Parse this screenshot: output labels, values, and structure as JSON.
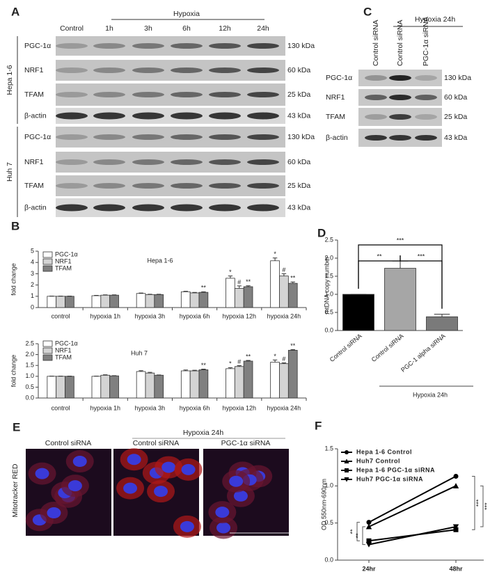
{
  "panel_letters": [
    "A",
    "B",
    "C",
    "D",
    "E",
    "F"
  ],
  "panel_a": {
    "group_label": "Hypoxia",
    "lanes": [
      "Control",
      "1h",
      "3h",
      "6h",
      "12h",
      "24h"
    ],
    "cell_lines": [
      {
        "name": "Hepa 1-6",
        "rows": [
          {
            "protein": "PGC-1α",
            "size": "130 kDa"
          },
          {
            "protein": "NRF1",
            "size": "60 kDa"
          },
          {
            "protein": "TFAM",
            "size": "25 kDa"
          },
          {
            "protein": "β-actin",
            "size": "43 kDa"
          }
        ]
      },
      {
        "name": "Huh 7",
        "rows": [
          {
            "protein": "PGC-1α",
            "size": "130 kDa"
          },
          {
            "protein": "NRF1",
            "size": "60 kDa"
          },
          {
            "protein": "TFAM",
            "size": "25 kDa"
          },
          {
            "protein": "β-actin",
            "size": "43 kDa"
          }
        ]
      }
    ]
  },
  "panel_c": {
    "group_label": "Hypoxia 24h",
    "lanes": [
      "Control siRNA",
      "Control siRNA",
      "PGC-1α siRNA"
    ],
    "rows": [
      {
        "protein": "PGC-1α",
        "size": "130 kDa"
      },
      {
        "protein": "NRF1",
        "size": "60 kDa"
      },
      {
        "protein": "TFAM",
        "size": "25 kDa"
      },
      {
        "protein": "β-actin",
        "size": "43 kDa"
      }
    ]
  },
  "panel_e": {
    "group_label": "Hypoxia 24h",
    "stain": "Mitotracker RED",
    "images": [
      "Control siRNA",
      "Control siRNA",
      "PGC-1α siRNA"
    ]
  },
  "chart_data": [
    {
      "type": "bar",
      "title": "Hepa 1-6",
      "y_label": "fold change",
      "legend": "upper left",
      "categories": [
        "control",
        "hypoxia 1h",
        "hypoxia 3h",
        "hypoxia 6h",
        "hypoxia 12h",
        "hypoxia 24h"
      ],
      "ylim": [
        0,
        5
      ],
      "yticks": [
        0,
        1,
        2,
        3,
        4,
        5
      ],
      "series": [
        {
          "name": "PGC-1α",
          "color": "#ffffff",
          "values": [
            1.0,
            1.05,
            1.25,
            1.4,
            2.6,
            4.15
          ],
          "errors": [
            0.02,
            0.03,
            0.04,
            0.04,
            0.2,
            0.25
          ],
          "significance": [
            null,
            null,
            null,
            null,
            "*",
            "*"
          ]
        },
        {
          "name": "NRF1",
          "color": "#d4d4d4",
          "values": [
            1.0,
            1.1,
            1.15,
            1.3,
            1.7,
            2.8
          ],
          "errors": [
            0.02,
            0.03,
            0.03,
            0.04,
            0.22,
            0.2
          ],
          "significance": [
            null,
            null,
            null,
            null,
            "#",
            "#"
          ]
        },
        {
          "name": "TFAM",
          "color": "#808080",
          "values": [
            1.0,
            1.1,
            1.15,
            1.35,
            1.85,
            2.15
          ],
          "errors": [
            0.02,
            0.03,
            0.03,
            0.05,
            0.08,
            0.12
          ],
          "significance": [
            null,
            null,
            null,
            "**",
            "**",
            "**"
          ]
        }
      ]
    },
    {
      "type": "bar",
      "title": "Huh 7",
      "y_label": "fold change",
      "legend": "upper left",
      "categories": [
        "control",
        "hypoxia 1h",
        "hypoxia 3h",
        "hypoxia 6h",
        "hypoxia 12h",
        "hypoxia 24h"
      ],
      "ylim": [
        0,
        2.5
      ],
      "yticks": [
        {
          "value": 0,
          "label": "0.0"
        },
        0.5,
        {
          "value": 1,
          "label": "1.0"
        },
        1.5,
        {
          "value": 2,
          "label": "2.0"
        },
        2.5
      ],
      "series": [
        {
          "name": "PGC-1α",
          "color": "#ffffff",
          "values": [
            1.0,
            1.0,
            1.22,
            1.25,
            1.35,
            1.65
          ],
          "errors": [
            0.01,
            0.01,
            0.04,
            0.04,
            0.05,
            0.1
          ],
          "significance": [
            null,
            null,
            null,
            null,
            "*",
            "*"
          ]
        },
        {
          "name": "NRF1",
          "color": "#d4d4d4",
          "values": [
            1.0,
            1.05,
            1.15,
            1.25,
            1.45,
            1.58
          ],
          "errors": [
            0.01,
            0.02,
            0.03,
            0.03,
            0.04,
            0.04
          ],
          "significance": [
            null,
            null,
            null,
            null,
            "#",
            "#"
          ]
        },
        {
          "name": "TFAM",
          "color": "#808080",
          "values": [
            1.0,
            1.02,
            1.05,
            1.3,
            1.7,
            2.2
          ],
          "errors": [
            0.01,
            0.01,
            0.01,
            0.03,
            0.03,
            0.03
          ],
          "significance": [
            null,
            null,
            null,
            "**",
            "**",
            "**"
          ]
        }
      ]
    },
    {
      "type": "bar",
      "y_label": "mtDNA copy number",
      "group_label": "Hypoxia 24h",
      "categories": [
        "Control siRNA",
        "Control siRNA",
        "PGC-1 alpha siRNA"
      ],
      "values": [
        1.0,
        1.72,
        0.38
      ],
      "errors": [
        0,
        0.2,
        0.07
      ],
      "colors": [
        "#000000",
        "#a6a6a6",
        "#7a7a7a"
      ],
      "ylim": [
        0,
        2.5
      ],
      "yticks": [
        {
          "value": 0,
          "label": "0.0"
        },
        0.5,
        {
          "value": 1,
          "label": "1.0"
        },
        1.5,
        {
          "value": 2,
          "label": "2.0"
        },
        2.5
      ],
      "annotations": [
        "**",
        "***",
        "***"
      ]
    },
    {
      "type": "line",
      "y_label": "OD 550nm-690nm",
      "legend": "upper left",
      "categories": [
        "24hr",
        "48hr"
      ],
      "ylim": [
        0,
        1.5
      ],
      "yticks": [
        {
          "value": 0,
          "label": "0.0"
        },
        0.5,
        {
          "value": 1,
          "label": "1.0"
        },
        1.5
      ],
      "series": [
        {
          "name": "Hepa 1-6 Control",
          "color": "#000000",
          "marker": "circle",
          "values": [
            0.51,
            1.13
          ]
        },
        {
          "name": "Huh7 Control",
          "color": "#000000",
          "marker": "triangle",
          "values": [
            0.45,
            1.0
          ]
        },
        {
          "name": "Hepa 1-6 PGC-1α siRNA",
          "color": "#000000",
          "marker": "square",
          "values": [
            0.26,
            0.41
          ]
        },
        {
          "name": "Huh7 PGC-1α siRNA",
          "color": "#000000",
          "marker": "triangle-down",
          "values": [
            0.21,
            0.45
          ]
        }
      ],
      "annotations": [
        "**",
        "**",
        "***",
        "***"
      ]
    }
  ]
}
